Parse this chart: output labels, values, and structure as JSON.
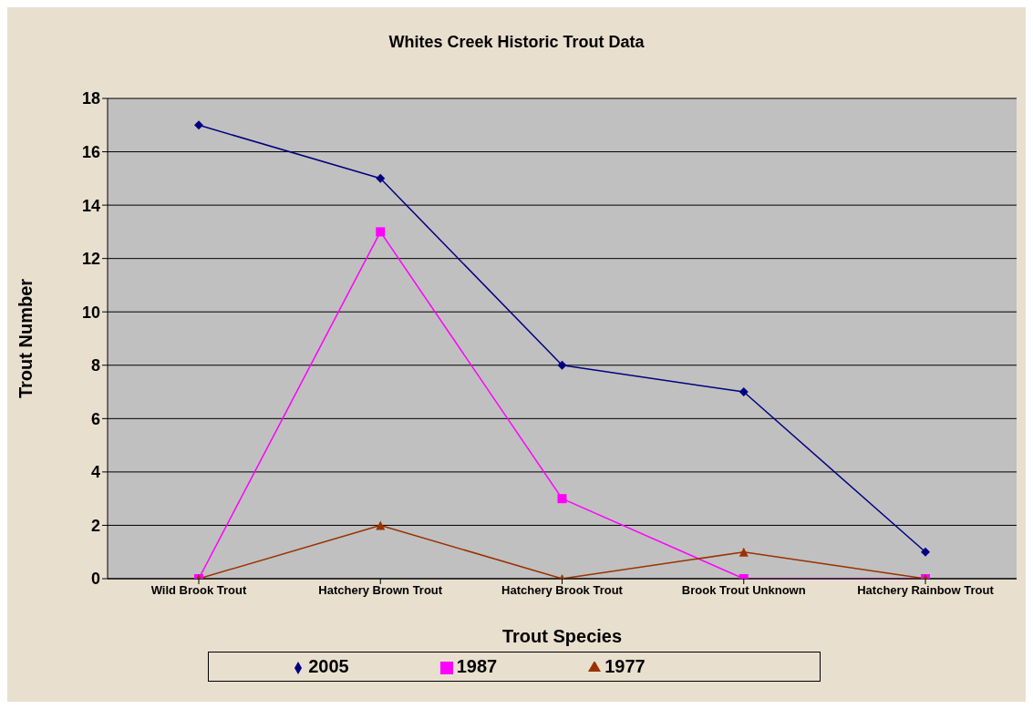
{
  "chart_data": {
    "type": "line",
    "title": "Whites Creek Historic Trout Data",
    "xlabel": "Trout Species",
    "ylabel": "Trout Number",
    "categories": [
      "Wild Brook Trout",
      "Hatchery Brown Trout",
      "Hatchery Brook Trout",
      "Brook Trout Unknown",
      "Hatchery Rainbow Trout"
    ],
    "series": [
      {
        "name": "2005",
        "color": "#000080",
        "marker": "diamond",
        "values": [
          17,
          15,
          8,
          7,
          1
        ]
      },
      {
        "name": "1987",
        "color": "#ff00ff",
        "marker": "square",
        "values": [
          0,
          13,
          3,
          0,
          0
        ]
      },
      {
        "name": "1977",
        "color": "#993300",
        "marker": "triangle",
        "values": [
          0,
          2,
          0,
          1,
          0
        ]
      }
    ],
    "ylim": [
      0,
      18
    ],
    "yticks": [
      0,
      2,
      4,
      6,
      8,
      10,
      12,
      14,
      16,
      18
    ],
    "grid": "y",
    "legend": "bottom"
  }
}
